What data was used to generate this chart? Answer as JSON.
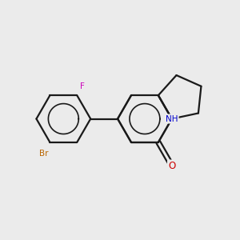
{
  "bg_color": "#ebebeb",
  "bond_color": "#1a1a1a",
  "bond_width": 1.6,
  "atom_colors": {
    "O": "#cc0000",
    "N": "#0000cc",
    "Br": "#bb6600",
    "F": "#cc00bb"
  },
  "figsize": [
    3.0,
    3.0
  ],
  "dpi": 100,
  "xlim": [
    0,
    10
  ],
  "ylim": [
    0,
    10
  ]
}
